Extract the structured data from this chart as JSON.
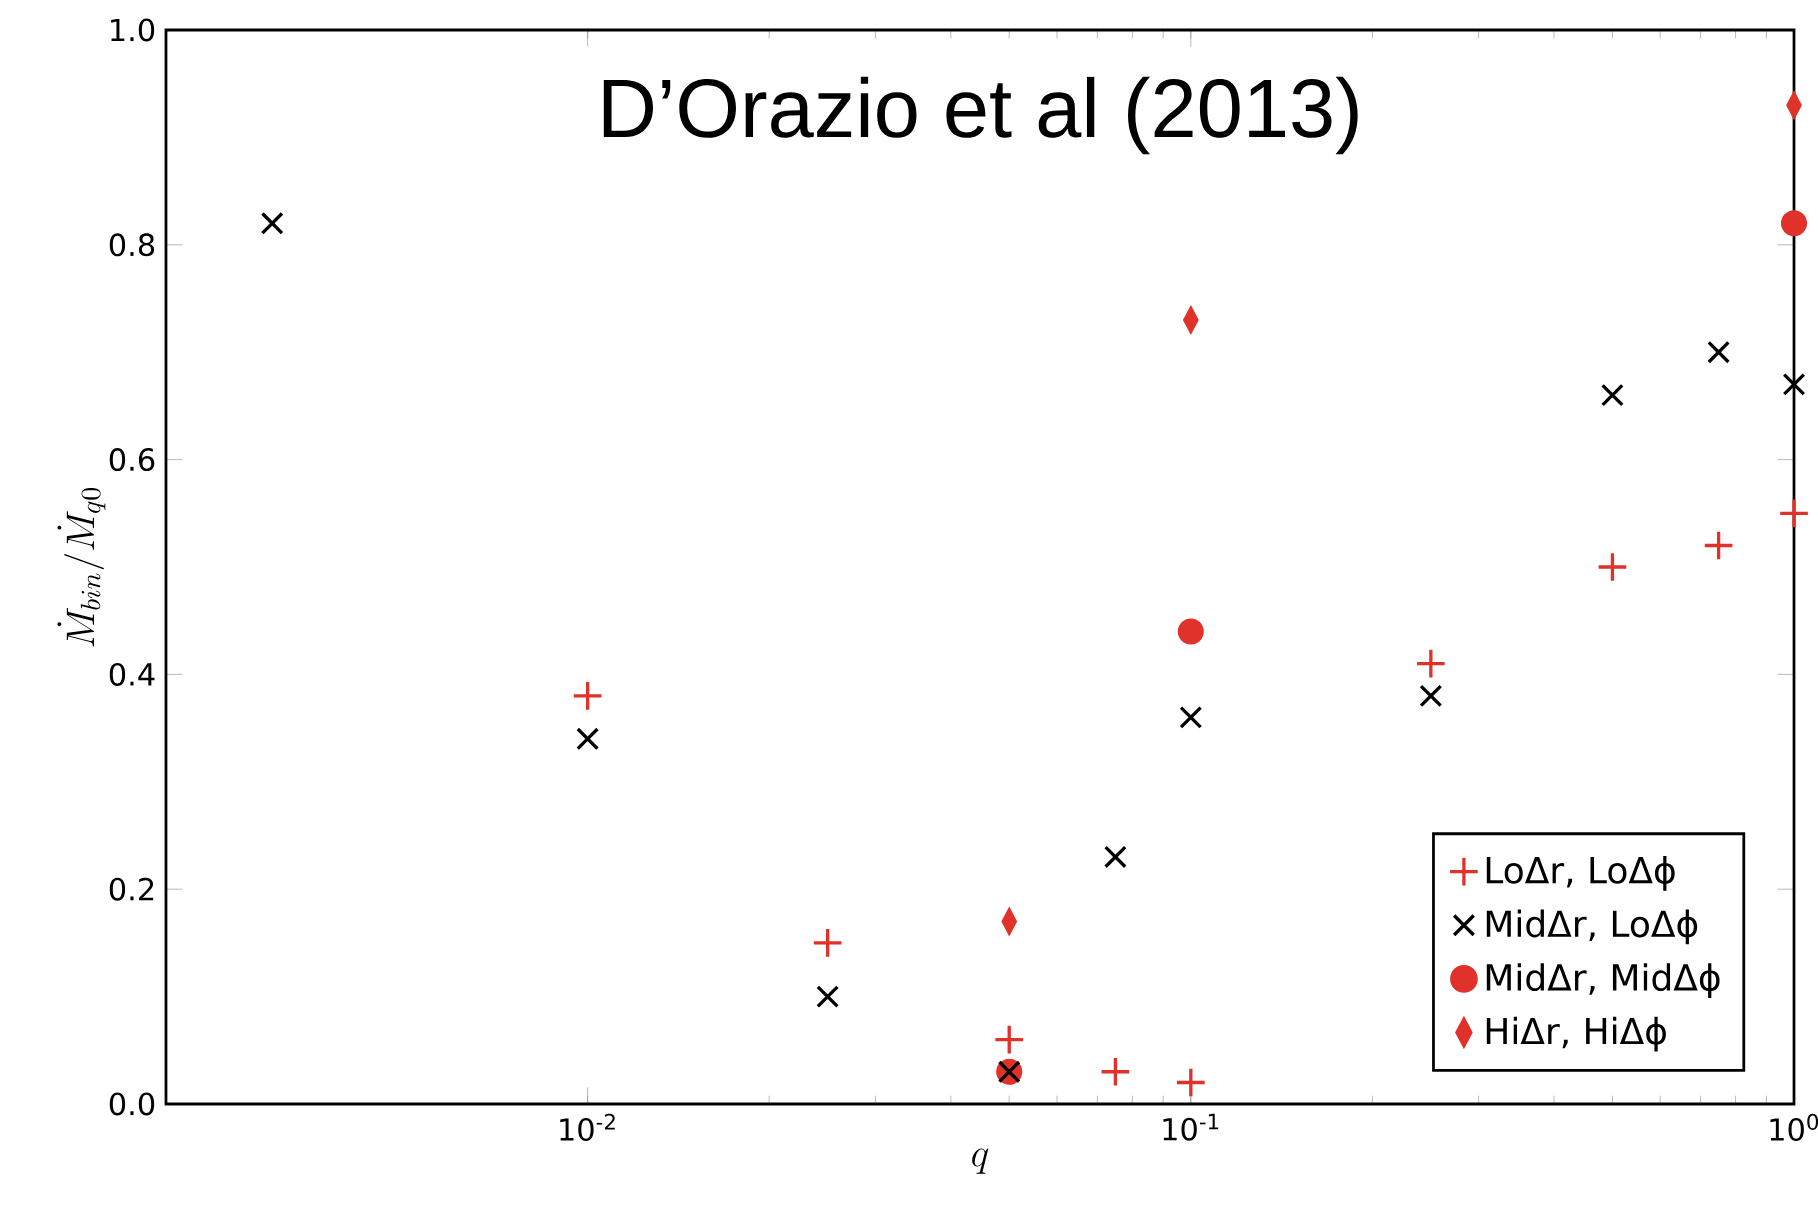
{
  "chart_data": {
    "type": "scatter",
    "title": "D’Orazio et al (2013)",
    "xlabel": "q",
    "ylabel": "\\dot{M}_{bin}/\\dot{M}_{q0}",
    "log": "x",
    "xlim": [
      0.002,
      1.0
    ],
    "ylim": [
      0,
      1.0
    ],
    "xticks": [
      {
        "value": 0.01,
        "label": "10$^{-2}$"
      },
      {
        "value": 0.1,
        "label": "10$^{-1}$"
      },
      {
        "value": 1,
        "label": "10$^{0}$"
      }
    ],
    "yticks": [
      {
        "value": 0,
        "label": "0.0"
      },
      {
        "value": 0.2,
        "label": "0.2"
      },
      {
        "value": 0.4,
        "label": "0.4"
      },
      {
        "value": 0.6,
        "label": "0.6"
      },
      {
        "value": 0.8,
        "label": "0.8"
      },
      {
        "value": 1.0,
        "label": "1.0"
      }
    ],
    "grid": false,
    "legend": "bottom right",
    "series": [
      {
        "name": "LoΔr, LoΔϕ",
        "color": "#e0312a",
        "x": [
          0.01,
          0.025,
          0.05,
          0.075,
          0.1,
          0.25,
          0.5,
          0.75,
          1.0
        ],
        "values": [
          0.38,
          0.15,
          0.06,
          0.03,
          0.02,
          0.41,
          0.5,
          0.52,
          0.55
        ]
      },
      {
        "name": "MidΔr, LoΔϕ",
        "color": "#000000",
        "marker": "cross",
        "x": [
          0.003,
          0.01,
          0.025,
          0.05,
          0.075,
          0.1,
          0.25,
          0.5,
          0.75,
          1.0
        ],
        "values": [
          0.82,
          0.34,
          0.1,
          0.03,
          0.23,
          0.36,
          0.38,
          0.66,
          0.7,
          0.67
        ]
      },
      {
        "name": "MidΔr, MidΔϕ",
        "color": "#e0312a",
        "marker": "circle",
        "x": [
          0.05,
          0.1,
          1.0
        ],
        "values": [
          0.03,
          0.44,
          0.82
        ]
      },
      {
        "name": "HiΔr, HiΔϕ",
        "color": "#e0312a",
        "marker": "diamond",
        "x": [
          0.05,
          0.1,
          1.0
        ],
        "values": [
          0.17,
          0.73,
          0.93
        ]
      }
    ]
  }
}
